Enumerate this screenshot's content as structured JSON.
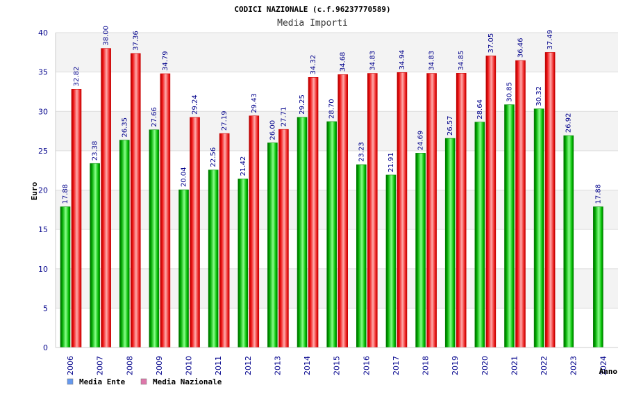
{
  "chart_data": {
    "type": "bar",
    "title": "CODICI NAZIONALE (c.f.96237770589)",
    "subtitle": "Media Importi",
    "xlabel": "Anno",
    "ylabel": "Euro",
    "ylim": [
      0,
      40
    ],
    "yticks": [
      0,
      5,
      10,
      15,
      20,
      25,
      30,
      35,
      40
    ],
    "grid": true,
    "legend_position": "bottom-left",
    "categories": [
      "2006",
      "2007",
      "2008",
      "2009",
      "2010",
      "2011",
      "2012",
      "2013",
      "2014",
      "2015",
      "2016",
      "2017",
      "2018",
      "2019",
      "2020",
      "2021",
      "2022",
      "2023",
      "2024"
    ],
    "series": [
      {
        "name": "Media Ente",
        "legend_color": "#6699ee",
        "bar_color": "#00aa00",
        "values": [
          17.88,
          23.38,
          26.35,
          27.66,
          20.04,
          22.56,
          21.42,
          26.0,
          29.25,
          28.7,
          23.23,
          21.91,
          24.69,
          26.57,
          28.64,
          30.85,
          30.32,
          26.92,
          17.88
        ],
        "labels": [
          "17.88",
          "23.38",
          "26.35",
          "27.66",
          "20.04",
          "22.56",
          "21.42",
          "26.00",
          "29.25",
          "28.70",
          "23.23",
          "21.91",
          "24.69",
          "26.57",
          "28.64",
          "30.85",
          "30.32",
          "26.92",
          "17.88"
        ]
      },
      {
        "name": "Media Nazionale",
        "legend_color": "#dd77aa",
        "bar_color": "#ee1111",
        "values": [
          32.82,
          38.0,
          37.36,
          34.79,
          29.24,
          27.19,
          29.43,
          27.71,
          34.32,
          34.68,
          34.83,
          34.94,
          34.83,
          34.85,
          37.05,
          36.46,
          37.49,
          null,
          null
        ],
        "labels": [
          "32.82",
          "38.00",
          "37.36",
          "34.79",
          "29.24",
          "27.19",
          "29.43",
          "27.71",
          "34.32",
          "34.68",
          "34.83",
          "34.94",
          "34.83",
          "34.85",
          "37.05",
          "36.46",
          "37.49",
          null,
          null
        ]
      }
    ]
  }
}
